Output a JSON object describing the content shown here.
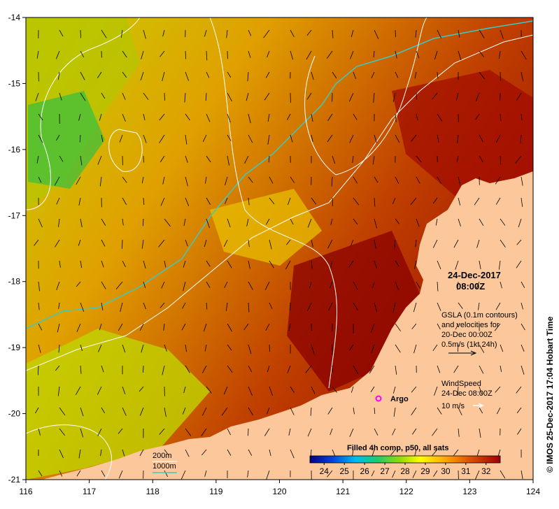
{
  "map": {
    "lon_ticks": [
      "116",
      "117",
      "118",
      "119",
      "120",
      "121",
      "122",
      "123",
      "124"
    ],
    "lat_ticks": [
      "-14",
      "-15",
      "-16",
      "-17",
      "-18",
      "-19",
      "-20",
      "-21"
    ],
    "lon_range": [
      116,
      124
    ],
    "lat_range": [
      -21,
      -14
    ]
  },
  "annotations": {
    "date": "24-Dec-2017",
    "time": "08:00Z",
    "gsla_line1": "GSLA (0.1m contours)",
    "gsla_line2": "and velocities for",
    "gsla_line3": "20-Dec 00:00Z",
    "gsla_scale": "0.5m/s (1kt 24h)",
    "wind_line1": "WindSpeed",
    "wind_line2": "24-Dec 08:00Z",
    "wind_scale": "10 m/s",
    "argo_label": "Argo",
    "iso_200": "200m",
    "iso_1000": "1000m",
    "credit": "© IMOS 25-Dec-2017 17:04 Hobart Time"
  },
  "colorbar": {
    "title": "Filled 4h comp, p50, all sats",
    "ticks": [
      "24",
      "25",
      "26",
      "27",
      "28",
      "29",
      "30",
      "31",
      "32"
    ],
    "range": [
      23.3,
      32.7
    ],
    "colors": [
      "#000080",
      "#0033cc",
      "#0099ff",
      "#00cccc",
      "#33cc33",
      "#99dd00",
      "#ffff00",
      "#ffcc00",
      "#ff9900",
      "#e06000",
      "#c03000",
      "#a00000"
    ]
  },
  "colors": {
    "land": "#fcc89b",
    "shelf_200m": "#ffffff",
    "isobath_1000m": "#40c8c0",
    "argo": "#ff00ff"
  }
}
